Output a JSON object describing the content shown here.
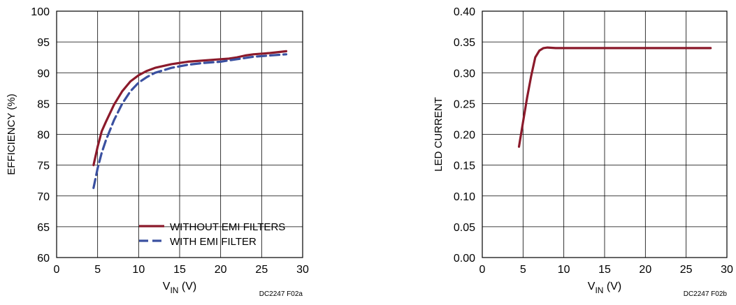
{
  "chart_data": [
    {
      "type": "line",
      "title": "",
      "xlabel": {
        "main": "V",
        "sub": "IN",
        "suffix": " (V)"
      },
      "ylabel": "EFFICIENCY (%)",
      "xlim": [
        0,
        30
      ],
      "ylim": [
        60,
        100
      ],
      "xticks": [
        "0",
        "5",
        "10",
        "15",
        "20",
        "25",
        "30"
      ],
      "yticks": [
        "60",
        "65",
        "70",
        "75",
        "80",
        "85",
        "90",
        "95",
        "100"
      ],
      "grid": true,
      "legend_position": "bottom-right",
      "series": [
        {
          "name": "WITHOUT EMI FILTERS",
          "color": "#8b1a2b",
          "dash": "solid",
          "x": [
            4.5,
            5,
            5.5,
            6,
            7,
            8,
            9,
            10,
            11,
            12,
            14,
            16,
            18,
            20,
            21,
            22,
            23,
            24,
            26,
            28
          ],
          "y": [
            75,
            78,
            80.5,
            82,
            84.8,
            87,
            88.6,
            89.6,
            90.3,
            90.8,
            91.4,
            91.8,
            92.0,
            92.2,
            92.3,
            92.5,
            92.8,
            93.0,
            93.2,
            93.5
          ]
        },
        {
          "name": "WITH EMI FILTER",
          "color": "#3a50a0",
          "dash": "dashed",
          "x": [
            4.5,
            5,
            5.5,
            6,
            7,
            8,
            9,
            10,
            11,
            12,
            14,
            16,
            18,
            20,
            21,
            22,
            23,
            24,
            26,
            28
          ],
          "y": [
            71.3,
            74.5,
            77,
            79,
            82.3,
            85,
            87,
            88.4,
            89.3,
            90.0,
            90.8,
            91.3,
            91.6,
            91.8,
            92.0,
            92.2,
            92.4,
            92.6,
            92.8,
            93.0
          ]
        }
      ],
      "footnote": "DC2247 F02a"
    },
    {
      "type": "line",
      "title": "",
      "xlabel": {
        "main": "V",
        "sub": "IN",
        "suffix": " (V)"
      },
      "ylabel": "LED CURRENT",
      "xlim": [
        0,
        30
      ],
      "ylim": [
        0,
        0.4
      ],
      "xticks": [
        "0",
        "5",
        "10",
        "15",
        "20",
        "25",
        "30"
      ],
      "yticks": [
        "0.00",
        "0.05",
        "0.10",
        "0.15",
        "0.20",
        "0.25",
        "0.30",
        "0.35",
        "0.40"
      ],
      "grid": true,
      "series": [
        {
          "color": "#8b1a2b",
          "dash": "solid",
          "x": [
            4.5,
            5,
            5.5,
            6,
            6.5,
            7,
            7.5,
            8,
            9,
            10,
            15,
            20,
            25,
            28
          ],
          "y": [
            0.18,
            0.22,
            0.26,
            0.295,
            0.325,
            0.336,
            0.34,
            0.341,
            0.34,
            0.34,
            0.34,
            0.34,
            0.34,
            0.34
          ]
        }
      ],
      "footnote": "DC2247 F02b"
    }
  ]
}
